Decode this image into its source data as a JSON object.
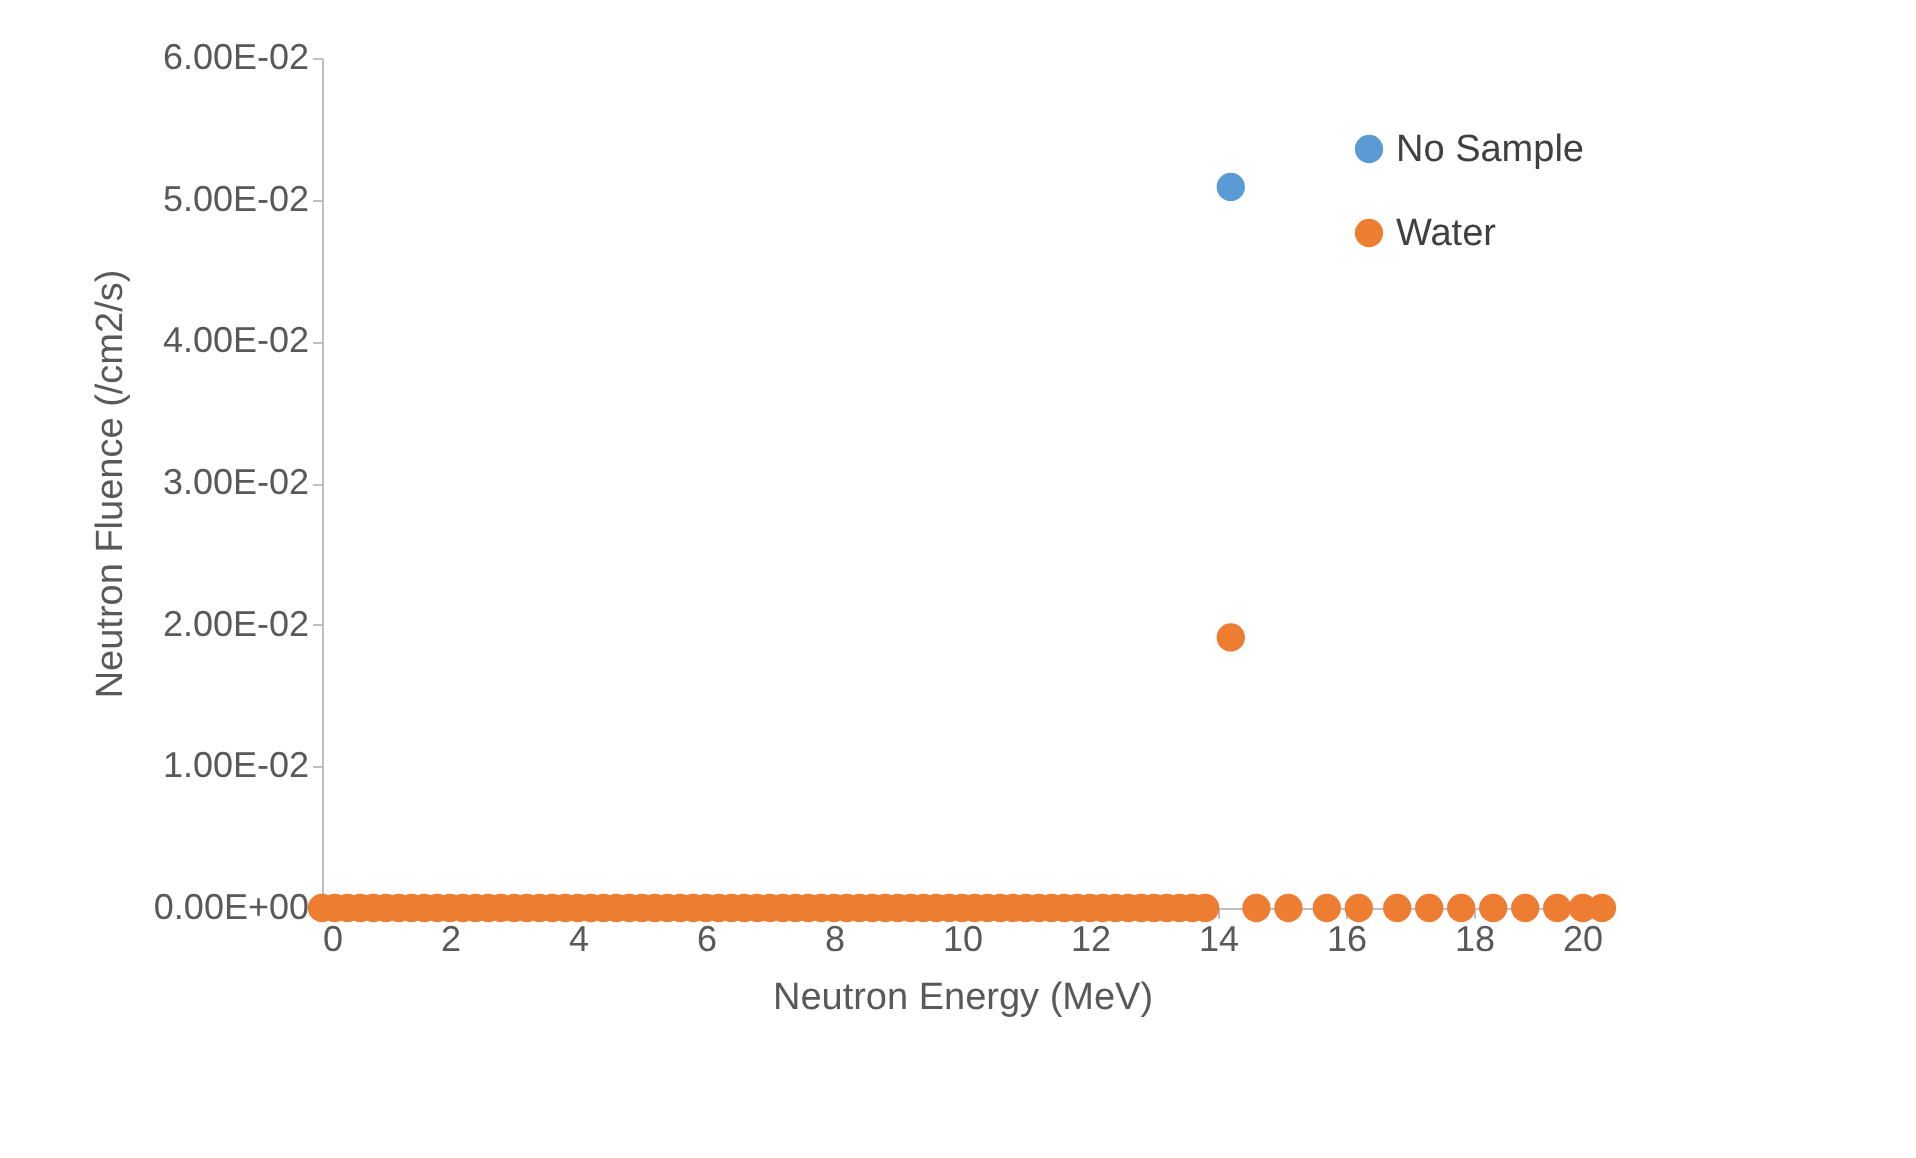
{
  "chart_data": {
    "type": "scatter",
    "xlabel": "Neutron Energy (MeV)",
    "ylabel": "Neutron Fluence (/cm2/s)",
    "xlim": [
      0,
      20
    ],
    "xticks": [
      0,
      2,
      4,
      6,
      8,
      10,
      12,
      14,
      16,
      18,
      20
    ],
    "ylim": [
      0,
      0.06
    ],
    "yticks": [
      {
        "value": 0,
        "label": "0.00E+00"
      },
      {
        "value": 0.01,
        "label": "1.00E-02"
      },
      {
        "value": 0.02,
        "label": "2.00E-02"
      },
      {
        "value": 0.03,
        "label": "3.00E-02"
      },
      {
        "value": 0.04,
        "label": "4.00E-02"
      },
      {
        "value": 0.05,
        "label": "5.00E-02"
      },
      {
        "value": 0.06,
        "label": "6.00E-02"
      }
    ],
    "legend": "top right",
    "marker": "circle",
    "grid": false,
    "series": [
      {
        "name": "No Sample",
        "color": "#5b9bd5",
        "x": [
          14.2
        ],
        "values": [
          0.0509
        ]
      },
      {
        "name": "Water",
        "color": "#ed7d31",
        "x": [
          0,
          0.2,
          0.4,
          0.6,
          0.8,
          1,
          1.2,
          1.4,
          1.6,
          1.8,
          2,
          2.2,
          2.4,
          2.6,
          2.8,
          3,
          3.2,
          3.4,
          3.6,
          3.8,
          4,
          4.2,
          4.4,
          4.6,
          4.8,
          5,
          5.2,
          5.4,
          5.6,
          5.8,
          6,
          6.2,
          6.4,
          6.6,
          6.8,
          7,
          7.2,
          7.4,
          7.6,
          7.8,
          8,
          8.2,
          8.4,
          8.6,
          8.8,
          9,
          9.2,
          9.4,
          9.6,
          9.8,
          10,
          10.2,
          10.4,
          10.6,
          10.8,
          11,
          11.2,
          11.4,
          11.6,
          11.8,
          12,
          12.2,
          12.4,
          12.6,
          12.8,
          13,
          13.2,
          13.4,
          13.6,
          13.8,
          14.2,
          14.6,
          15.1,
          15.7,
          16.2,
          16.8,
          17.3,
          17.8,
          18.3,
          18.8,
          19.3,
          19.7,
          20
        ],
        "values": [
          0,
          0,
          0,
          0,
          0,
          0,
          0,
          0,
          0,
          0,
          0,
          0,
          0,
          0,
          0,
          0,
          0,
          0,
          0,
          0,
          0,
          0,
          0,
          0,
          0,
          0,
          0,
          0,
          0,
          0,
          0,
          0,
          0,
          0,
          0,
          0,
          0,
          0,
          0,
          0,
          0,
          0,
          0,
          0,
          0,
          0,
          0,
          0,
          0,
          0,
          0,
          0,
          0,
          0,
          0,
          0,
          0,
          0,
          0,
          0,
          0,
          0,
          0,
          0,
          0,
          0,
          0,
          0,
          0,
          0,
          0.0191,
          0,
          0,
          0,
          0,
          0,
          0,
          0,
          0,
          0,
          0,
          0,
          0
        ]
      }
    ]
  }
}
